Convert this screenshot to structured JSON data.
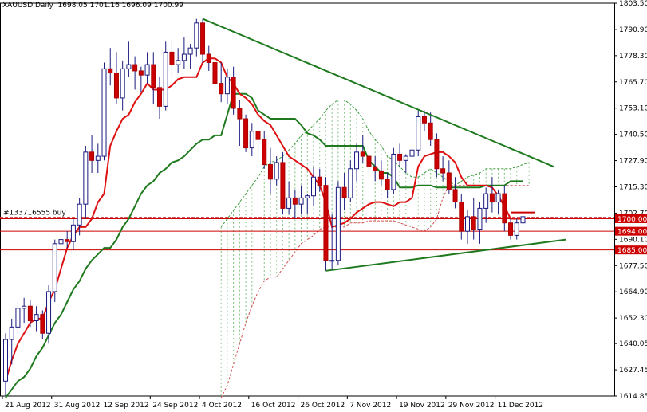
{
  "header": {
    "symbol": "XAUUSD,Daily",
    "ohlc": "1698.05 1701.16 1696.09 1700.99"
  },
  "chart_data": {
    "type": "candlestick",
    "price_axis": {
      "min": 1614.85,
      "max": 1803.5,
      "ticks": [
        "1803.50",
        "1790.90",
        "1778.30",
        "1765.70",
        "1753.10",
        "1740.50",
        "1727.90",
        "1715.30",
        "1702.70",
        "1690.10",
        "1677.50",
        "1664.90",
        "1652.30",
        "1640.05",
        "1627.45",
        "1614.85"
      ]
    },
    "date_labels": [
      {
        "label": "21 Aug 2012",
        "bar": 0
      },
      {
        "label": "31 Aug 2012",
        "bar": 8
      },
      {
        "label": "12 Sep 2012",
        "bar": 16
      },
      {
        "label": "24 Sep 2012",
        "bar": 24
      },
      {
        "label": "4 Oct 2012",
        "bar": 32
      },
      {
        "label": "16 Oct 2012",
        "bar": 40
      },
      {
        "label": "26 Oct 2012",
        "bar": 48
      },
      {
        "label": "7 Nov 2012",
        "bar": 56
      },
      {
        "label": "19 Nov 2012",
        "bar": 64
      },
      {
        "label": "29 Nov 2012",
        "bar": 72
      },
      {
        "label": "11 Dec 2012",
        "bar": 80
      }
    ],
    "candles": [
      [
        1622,
        1645,
        1615,
        1642
      ],
      [
        1642,
        1652,
        1630,
        1648
      ],
      [
        1648,
        1660,
        1644,
        1657
      ],
      [
        1657,
        1662,
        1650,
        1658
      ],
      [
        1658,
        1661,
        1648,
        1651
      ],
      [
        1651,
        1658,
        1646,
        1654
      ],
      [
        1654,
        1656,
        1642,
        1645
      ],
      [
        1645,
        1668,
        1640,
        1665
      ],
      [
        1665,
        1690,
        1660,
        1688
      ],
      [
        1688,
        1695,
        1684,
        1690
      ],
      [
        1690,
        1694,
        1686,
        1689
      ],
      [
        1689,
        1700,
        1685,
        1697
      ],
      [
        1697,
        1710,
        1692,
        1707
      ],
      [
        1707,
        1735,
        1700,
        1732
      ],
      [
        1732,
        1740,
        1722,
        1728
      ],
      [
        1728,
        1736,
        1722,
        1730
      ],
      [
        1730,
        1775,
        1728,
        1772
      ],
      [
        1772,
        1782,
        1764,
        1770
      ],
      [
        1770,
        1780,
        1755,
        1758
      ],
      [
        1758,
        1776,
        1752,
        1772
      ],
      [
        1772,
        1785,
        1768,
        1774
      ],
      [
        1774,
        1778,
        1762,
        1771
      ],
      [
        1771,
        1773,
        1761,
        1769
      ],
      [
        1769,
        1780,
        1765,
        1774
      ],
      [
        1774,
        1780,
        1755,
        1763
      ],
      [
        1763,
        1768,
        1748,
        1754
      ],
      [
        1754,
        1785,
        1752,
        1780
      ],
      [
        1780,
        1786,
        1768,
        1774
      ],
      [
        1774,
        1782,
        1770,
        1776
      ],
      [
        1776,
        1787,
        1772,
        1779
      ],
      [
        1779,
        1784,
        1772,
        1782
      ],
      [
        1782,
        1796,
        1778,
        1794
      ],
      [
        1794,
        1796,
        1775,
        1779
      ],
      [
        1779,
        1783,
        1771,
        1775
      ],
      [
        1775,
        1778,
        1760,
        1765
      ],
      [
        1765,
        1775,
        1756,
        1760
      ],
      [
        1760,
        1772,
        1755,
        1768
      ],
      [
        1768,
        1773,
        1750,
        1753
      ],
      [
        1753,
        1757,
        1735,
        1748
      ],
      [
        1748,
        1750,
        1732,
        1734
      ],
      [
        1734,
        1746,
        1730,
        1742
      ],
      [
        1742,
        1745,
        1730,
        1738
      ],
      [
        1738,
        1742,
        1724,
        1726
      ],
      [
        1726,
        1734,
        1712,
        1719
      ],
      [
        1719,
        1730,
        1716,
        1727
      ],
      [
        1727,
        1732,
        1702,
        1705
      ],
      [
        1705,
        1718,
        1702,
        1710
      ],
      [
        1710,
        1714,
        1700,
        1707
      ],
      [
        1707,
        1716,
        1702,
        1710
      ],
      [
        1710,
        1712,
        1702,
        1711
      ],
      [
        1711,
        1725,
        1706,
        1720
      ],
      [
        1720,
        1724,
        1713,
        1716
      ],
      [
        1716,
        1720,
        1675,
        1680
      ],
      [
        1680,
        1702,
        1676,
        1680
      ],
      [
        1680,
        1718,
        1678,
        1715
      ],
      [
        1715,
        1722,
        1704,
        1710
      ],
      [
        1710,
        1728,
        1708,
        1724
      ],
      [
        1724,
        1736,
        1718,
        1732
      ],
      [
        1732,
        1740,
        1727,
        1730
      ],
      [
        1730,
        1733,
        1722,
        1725
      ],
      [
        1725,
        1730,
        1718,
        1723
      ],
      [
        1723,
        1728,
        1716,
        1719
      ],
      [
        1719,
        1722,
        1710,
        1714
      ],
      [
        1714,
        1734,
        1712,
        1731
      ],
      [
        1731,
        1736,
        1725,
        1728
      ],
      [
        1728,
        1731,
        1722,
        1730
      ],
      [
        1730,
        1734,
        1726,
        1733
      ],
      [
        1733,
        1752,
        1730,
        1749
      ],
      [
        1749,
        1752,
        1742,
        1746
      ],
      [
        1746,
        1751,
        1735,
        1738
      ],
      [
        1738,
        1741,
        1720,
        1724
      ],
      [
        1724,
        1730,
        1718,
        1722
      ],
      [
        1722,
        1728,
        1712,
        1714
      ],
      [
        1714,
        1720,
        1705,
        1708
      ],
      [
        1708,
        1712,
        1690,
        1694
      ],
      [
        1694,
        1704,
        1688,
        1701
      ],
      [
        1701,
        1710,
        1690,
        1695
      ],
      [
        1695,
        1708,
        1688,
        1705
      ],
      [
        1705,
        1715,
        1698,
        1712
      ],
      [
        1712,
        1720,
        1703,
        1708
      ],
      [
        1708,
        1714,
        1702,
        1712
      ],
      [
        1712,
        1716,
        1694,
        1698
      ],
      [
        1698,
        1700,
        1690,
        1692
      ],
      [
        1692,
        1700,
        1690,
        1698
      ],
      [
        1698,
        1701.16,
        1696.09,
        1700.99
      ]
    ],
    "tenkan_sen": [
      1622,
      1632,
      1640,
      1645,
      1650,
      1652,
      1652,
      1660,
      1666,
      1676,
      1686,
      1692,
      1696,
      1696,
      1700,
      1708,
      1712,
      1735,
      1742,
      1748,
      1750,
      1756,
      1760,
      1765,
      1762,
      1762,
      1762,
      1764,
      1767,
      1768,
      1768,
      1768,
      1775,
      1777,
      1777,
      1775,
      1768,
      1765,
      1760,
      1758,
      1755,
      1750,
      1747,
      1745,
      1740,
      1735,
      1730,
      1728,
      1726,
      1724,
      1720,
      1716,
      1708,
      1696,
      1697,
      1698,
      1700,
      1703,
      1705,
      1707,
      1708,
      1708,
      1707,
      1706,
      1708,
      1708,
      1710,
      1725,
      1730,
      1731,
      1732,
      1732,
      1730,
      1727,
      1720,
      1716,
      1716,
      1716,
      1716,
      1715,
      1711,
      1706,
      1700,
      1700,
      1700
    ],
    "kijun_sen": [
      1614,
      1618,
      1622,
      1624,
      1628,
      1634,
      1638,
      1644,
      1650,
      1654,
      1660,
      1666,
      1670,
      1676,
      1680,
      1683,
      1686,
      1686,
      1690,
      1696,
      1700,
      1706,
      1712,
      1716,
      1718,
      1722,
      1724,
      1727,
      1728,
      1730,
      1733,
      1736,
      1738,
      1738,
      1740,
      1740,
      1750,
      1760,
      1760,
      1760,
      1758,
      1752,
      1750,
      1748,
      1748,
      1748,
      1748,
      1748,
      1745,
      1741,
      1740,
      1738,
      1735,
      1735,
      1735,
      1735,
      1735,
      1735,
      1735,
      1728,
      1725,
      1722,
      1722,
      1720,
      1715,
      1715,
      1715,
      1716,
      1716,
      1716,
      1715,
      1715,
      1715,
      1715,
      1715,
      1715,
      1715,
      1715,
      1716,
      1716,
      1716,
      1716,
      1718,
      1718,
      1718
    ],
    "senkou_a": [
      1696,
      1700,
      1704,
      1708,
      1712,
      1716,
      1720,
      1725,
      1727,
      1728,
      1730,
      1733,
      1736,
      1740,
      1742,
      1745,
      1748,
      1752,
      1755,
      1757,
      1757,
      1755,
      1752,
      1748,
      1742,
      1738,
      1735,
      1730,
      1728,
      1725,
      1722,
      1720,
      1720,
      1722,
      1724,
      1722,
      1720,
      1718,
      1716,
      1718,
      1720,
      1721,
      1722,
      1724,
      1724,
      1724,
      1724,
      1724,
      1725,
      1726,
      1727
    ],
    "senkou_b": [
      1614,
      1620,
      1630,
      1640,
      1650,
      1658,
      1665,
      1670,
      1672,
      1672,
      1676,
      1680,
      1684,
      1688,
      1690,
      1692,
      1695,
      1696,
      1696,
      1696,
      1696,
      1698,
      1698,
      1698,
      1699,
      1699,
      1699,
      1699,
      1699,
      1698,
      1697,
      1696,
      1695,
      1694,
      1696,
      1700,
      1710,
      1716,
      1716,
      1716,
      1716,
      1716,
      1716,
      1716,
      1716,
      1716,
      1716,
      1716,
      1716,
      1716,
      1716
    ],
    "cloud_start_bar": 35,
    "trendline_upper": {
      "from": {
        "bar": 32,
        "price": 1796
      },
      "to": {
        "bar": 89,
        "price": 1725
      }
    },
    "trendline_lower": {
      "from": {
        "bar": 52,
        "price": 1675
      },
      "to": {
        "bar": 91,
        "price": 1690
      }
    },
    "levels": [
      {
        "price": 1700.0,
        "label": "1700.00",
        "color": "#cc0000"
      },
      {
        "price": 1694.0,
        "label": "1694.00",
        "color": "#cc0000"
      },
      {
        "price": 1685.0,
        "label": "1685.00",
        "color": "#cc0000"
      }
    ],
    "order_line": {
      "price": 1700.7,
      "label": "#133716555 buy",
      "color": "#d33a3a"
    },
    "short_red_level": {
      "from_bar": 82,
      "to_bar": 86,
      "price": 1703
    }
  }
}
